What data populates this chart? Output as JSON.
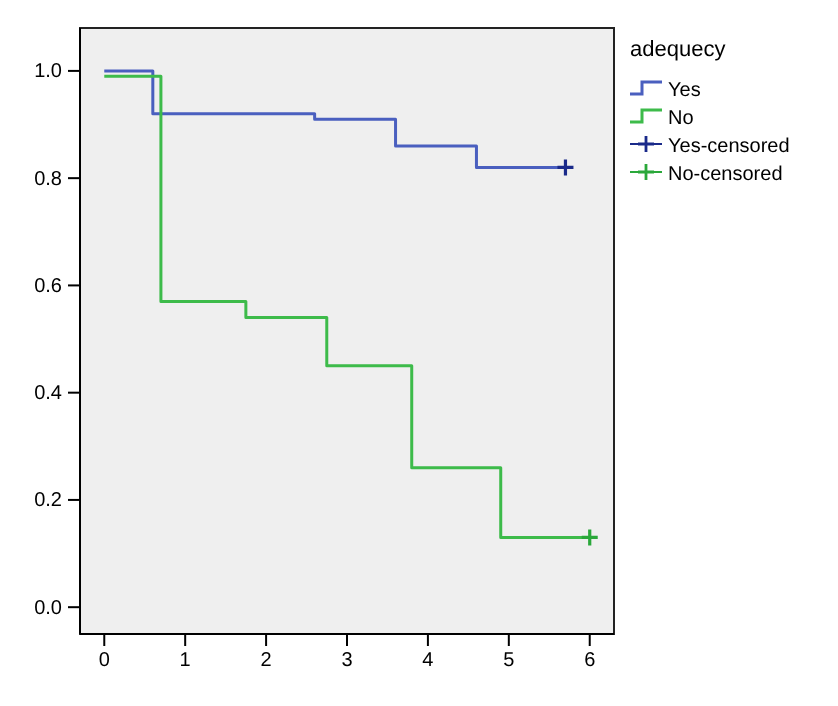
{
  "chart_data": {
    "type": "step",
    "legend_title": "adequecy",
    "xlim": [
      -0.3,
      6.3
    ],
    "xticks": [
      0,
      1,
      2,
      3,
      4,
      5,
      6
    ],
    "ylim": [
      -0.05,
      1.08
    ],
    "yticks": [
      {
        "value": 0,
        "label": "0.0"
      },
      {
        "value": 0.2,
        "label": "0.2"
      },
      {
        "value": 0.4,
        "label": "0.4"
      },
      {
        "value": 0.6,
        "label": "0.6"
      },
      {
        "value": 0.8,
        "label": "0.8"
      },
      {
        "value": 1,
        "label": "1.0"
      }
    ],
    "legend": "right",
    "grid": false,
    "series": [
      {
        "name": "Yes",
        "color": "#4a5fbf",
        "x": [
          0,
          0.6,
          2.6,
          3.6,
          4.6,
          5.7
        ],
        "values": [
          1,
          0.92,
          0.91,
          0.86,
          0.82,
          0.82
        ]
      },
      {
        "name": "No",
        "color": "#3dbb4a",
        "x": [
          0,
          0.7,
          1.75,
          2.75,
          3.8,
          4.9,
          6.0
        ],
        "values": [
          0.99,
          0.57,
          0.54,
          0.45,
          0.26,
          0.13,
          0.13
        ]
      },
      {
        "name": "Yes-censored",
        "type": "scatter",
        "marker": "cross",
        "color": "#1a2a8a",
        "x": [
          5.7
        ],
        "values": [
          0.82
        ]
      },
      {
        "name": "No-censored",
        "type": "scatter",
        "marker": "cross",
        "color": "#2aa83a",
        "x": [
          6.0
        ],
        "values": [
          0.13
        ]
      }
    ]
  }
}
